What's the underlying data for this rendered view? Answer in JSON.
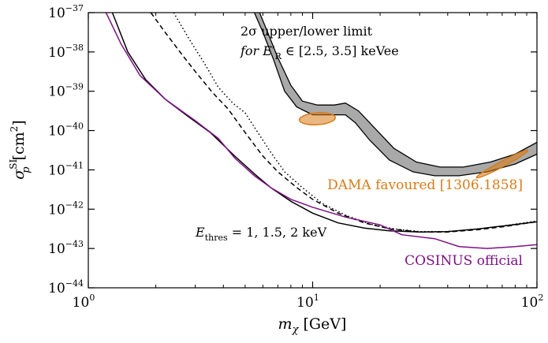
{
  "chart_data": {
    "type": "line",
    "x_scale": "log",
    "y_scale": "log",
    "xlim": [
      1,
      100
    ],
    "ylim": [
      1e-44,
      1e-37
    ],
    "xlabel": {
      "main": "m",
      "sub": "χ",
      "unit": "[GeV]"
    },
    "ylabel": {
      "main": "σ",
      "sub": "p",
      "sup": "SI",
      "unit": "[cm",
      "unit_sup": "2",
      "unit_end": "]"
    },
    "x_ticks": [
      {
        "value": 1,
        "base": "10",
        "exp": "0"
      },
      {
        "value": 10,
        "base": "10",
        "exp": "1"
      },
      {
        "value": 100,
        "base": "10",
        "exp": "2"
      }
    ],
    "y_ticks": [
      {
        "value": -44,
        "base": "10",
        "exp": "−44"
      },
      {
        "value": -43,
        "base": "10",
        "exp": "−43"
      },
      {
        "value": -42,
        "base": "10",
        "exp": "−42"
      },
      {
        "value": -41,
        "base": "10",
        "exp": "−41"
      },
      {
        "value": -40,
        "base": "10",
        "exp": "−40"
      },
      {
        "value": -39,
        "base": "10",
        "exp": "−39"
      },
      {
        "value": -38,
        "base": "10",
        "exp": "−38"
      },
      {
        "value": -37,
        "base": "10",
        "exp": "−37"
      }
    ],
    "grid": false,
    "annotations": {
      "dama_box_line1": "2σ upper/lower limit",
      "dama_box_line2_prefix": "for E′",
      "dama_box_line2_sub": "R",
      "dama_box_line2_suffix": " ∈ [2.5, 3.5] keVee",
      "threshold_prefix": "E",
      "threshold_sub": "thres",
      "threshold_suffix": " = 1, 1.5, 2 keV",
      "dama_label": "DAMA favoured [1306.1858]",
      "cosinus_label": "COSINUS official"
    },
    "colors": {
      "dama": "#d97b17",
      "cosinus": "#7f1085",
      "band_fill": "#a9a9a9",
      "line": "#000000"
    },
    "series": [
      {
        "style": "solid",
        "points": [
          [
            1.28,
            -37
          ],
          [
            1.5,
            -38.0
          ],
          [
            1.8,
            -38.7
          ],
          [
            2.2,
            -39.2
          ],
          [
            2.8,
            -39.65
          ],
          [
            3.5,
            -40.05
          ],
          [
            4.5,
            -40.65
          ],
          [
            5.5,
            -41.1
          ],
          [
            6.5,
            -41.45
          ],
          [
            8,
            -41.8
          ],
          [
            10,
            -42.1
          ],
          [
            13,
            -42.35
          ],
          [
            17,
            -42.48
          ],
          [
            22,
            -42.55
          ],
          [
            30,
            -42.58
          ],
          [
            40,
            -42.57
          ],
          [
            55,
            -42.5
          ],
          [
            70,
            -42.43
          ],
          [
            100,
            -42.32
          ]
        ]
      },
      {
        "style": "dashed",
        "points": [
          [
            1.9,
            -37
          ],
          [
            2.2,
            -37.5
          ],
          [
            2.6,
            -38.05
          ],
          [
            3.0,
            -38.5
          ],
          [
            3.6,
            -39.05
          ],
          [
            4.2,
            -39.45
          ],
          [
            5,
            -40.05
          ],
          [
            6,
            -40.65
          ],
          [
            7,
            -41.05
          ],
          [
            8.5,
            -41.45
          ],
          [
            10,
            -41.75
          ],
          [
            13,
            -42.1
          ],
          [
            17,
            -42.35
          ],
          [
            22,
            -42.5
          ],
          [
            30,
            -42.58
          ],
          [
            40,
            -42.58
          ],
          [
            55,
            -42.52
          ],
          [
            70,
            -42.45
          ],
          [
            100,
            -42.32
          ]
        ]
      },
      {
        "style": "dotted",
        "points": [
          [
            2.4,
            -37
          ],
          [
            2.8,
            -37.65
          ],
          [
            3.3,
            -38.3
          ],
          [
            3.8,
            -38.9
          ],
          [
            4.4,
            -39.3
          ],
          [
            5.0,
            -39.55
          ],
          [
            5.7,
            -40.05
          ],
          [
            6.5,
            -40.55
          ],
          [
            7.5,
            -41.05
          ],
          [
            9,
            -41.45
          ],
          [
            11,
            -41.85
          ],
          [
            14,
            -42.15
          ],
          [
            18,
            -42.38
          ],
          [
            23,
            -42.5
          ],
          [
            30,
            -42.57
          ],
          [
            40,
            -42.57
          ],
          [
            55,
            -42.5
          ],
          [
            70,
            -42.43
          ],
          [
            100,
            -42.3
          ]
        ]
      },
      {
        "style": "solid",
        "color_key": "cosinus",
        "name": "COSINUS official",
        "points": [
          [
            1.2,
            -37
          ],
          [
            1.4,
            -37.8
          ],
          [
            1.7,
            -38.6
          ],
          [
            2.2,
            -39.2
          ],
          [
            3,
            -39.75
          ],
          [
            3.8,
            -40.2
          ],
          [
            4.5,
            -40.7
          ],
          [
            5.5,
            -41.15
          ],
          [
            6.5,
            -41.45
          ],
          [
            8,
            -41.75
          ],
          [
            10,
            -41.95
          ],
          [
            14,
            -42.2
          ],
          [
            20,
            -42.4
          ],
          [
            25,
            -42.65
          ],
          [
            35,
            -42.75
          ],
          [
            45,
            -42.95
          ],
          [
            60,
            -43.0
          ],
          [
            80,
            -42.95
          ],
          [
            100,
            -42.9
          ]
        ]
      }
    ],
    "dama_band": {
      "lower": [
        [
          5.5,
          -37
        ],
        [
          6,
          -37.5
        ],
        [
          6.7,
          -38.2
        ],
        [
          7.5,
          -39.0
        ],
        [
          8.5,
          -39.4
        ],
        [
          10,
          -39.6
        ],
        [
          12,
          -39.6
        ],
        [
          14,
          -39.6
        ],
        [
          15.5,
          -39.8
        ],
        [
          18,
          -40.25
        ],
        [
          22,
          -40.75
        ],
        [
          28,
          -41.05
        ],
        [
          35,
          -41.15
        ],
        [
          45,
          -41.15
        ],
        [
          60,
          -41.05
        ],
        [
          80,
          -40.85
        ],
        [
          100,
          -40.6
        ]
      ],
      "upper": [
        [
          5.8,
          -37
        ],
        [
          6.3,
          -37.5
        ],
        [
          7.0,
          -38.15
        ],
        [
          8,
          -38.85
        ],
        [
          9,
          -39.25
        ],
        [
          10.5,
          -39.35
        ],
        [
          12.5,
          -39.35
        ],
        [
          14,
          -39.3
        ],
        [
          16,
          -39.5
        ],
        [
          19,
          -39.95
        ],
        [
          23,
          -40.45
        ],
        [
          29,
          -40.8
        ],
        [
          37,
          -40.93
        ],
        [
          47,
          -40.93
        ],
        [
          62,
          -40.8
        ],
        [
          80,
          -40.6
        ],
        [
          100,
          -40.3
        ]
      ]
    },
    "dama_regions": [
      {
        "center": [
          10.5,
          -39.7
        ],
        "rx_dec": 0.08,
        "ry_dec": 0.15
      },
      {
        "center": [
          70,
          -40.85
        ],
        "rx_dec": 0.13,
        "ry_dec": 0.28
      }
    ]
  }
}
